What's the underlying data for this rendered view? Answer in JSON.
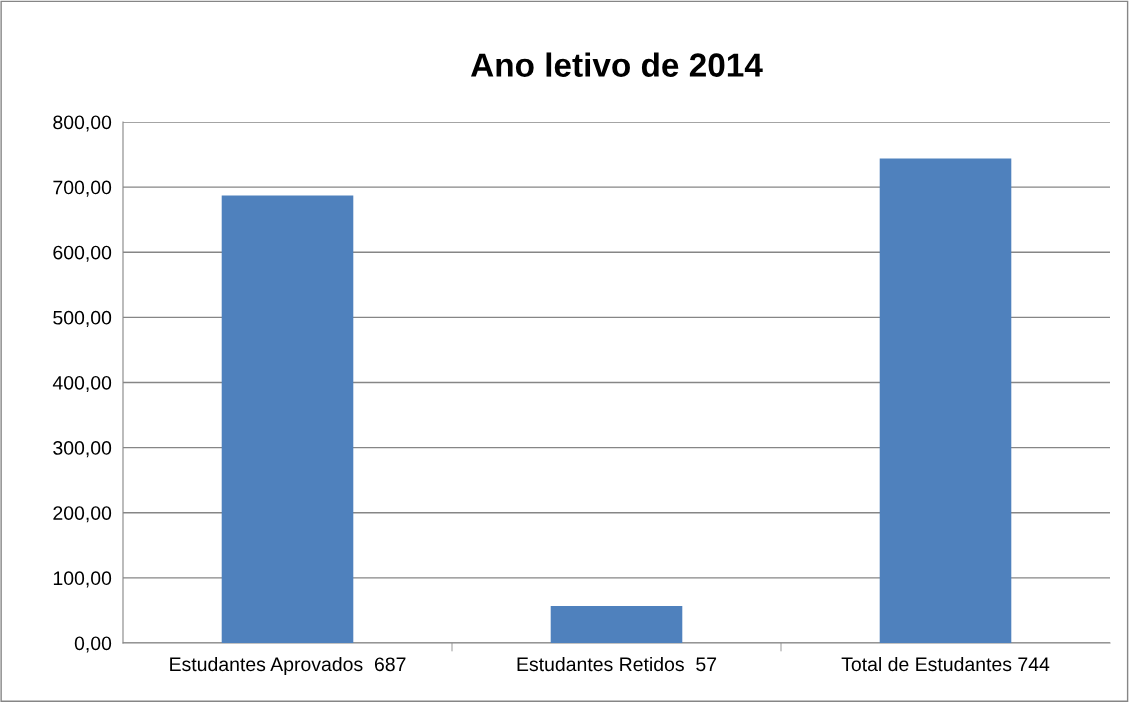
{
  "chart_data": {
    "type": "bar",
    "title": "Ano letivo de 2014",
    "categories": [
      "Estudantes Aprovados  687",
      "Estudantes Retidos  57",
      "Total de Estudantes 744"
    ],
    "values": [
      687,
      57,
      744
    ],
    "color": "#4f81bd",
    "ylim": [
      0,
      800
    ],
    "yticks": [
      {
        "value": 0,
        "label": "0,00"
      },
      {
        "value": 100,
        "label": "100,00"
      },
      {
        "value": 200,
        "label": "200,00"
      },
      {
        "value": 300,
        "label": "300,00"
      },
      {
        "value": 400,
        "label": "400,00"
      },
      {
        "value": 500,
        "label": "500,00"
      },
      {
        "value": 600,
        "label": "600,00"
      },
      {
        "value": 700,
        "label": "700,00"
      },
      {
        "value": 800,
        "label": "800,00"
      }
    ],
    "grid": "y"
  }
}
